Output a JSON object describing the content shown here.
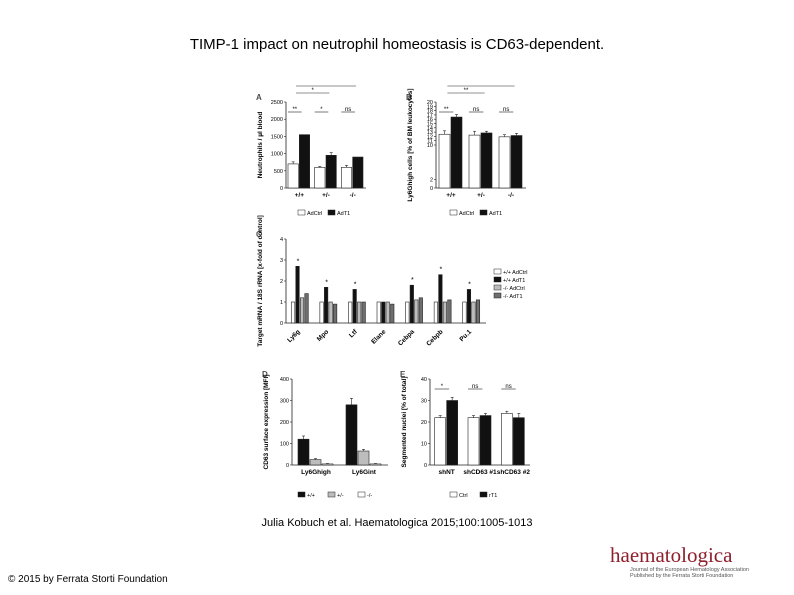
{
  "slide": {
    "title": "TIMP-1 impact on neutrophil homeostasis is CD63-dependent.",
    "citation": "Julia Kobuch et al. Haematologica 2015;100:1005-1013",
    "copyright": "© 2015 by Ferrata Storti Foundation",
    "logo_text": "haematologica",
    "logo_sub1": "Journal of the European Hematology Association",
    "logo_sub2": "Published by the Ferrata Storti Foundation"
  },
  "colors": {
    "white_bar": "#ffffff",
    "black_bar": "#111111",
    "light_gray_bar": "#bdbdbd",
    "dark_gray_bar": "#6e6e6e",
    "stroke": "#222222"
  },
  "chart_data": [
    {
      "panel": "A",
      "type": "bar",
      "ylabel": "Neutrophils / µl blood",
      "ylim": [
        0,
        2500
      ],
      "yticks": [
        0,
        500,
        1000,
        1500,
        2000,
        2500
      ],
      "categories": [
        "+/+",
        "+/-",
        "-/-"
      ],
      "series": [
        {
          "name": "AdCtrl",
          "values": [
            700,
            600,
            600
          ],
          "errors": [
            60,
            30,
            60
          ],
          "color": "white"
        },
        {
          "name": "AdT1",
          "values": [
            1550,
            950,
            900
          ],
          "errors": [
            0,
            80,
            0
          ],
          "color": "black"
        }
      ],
      "significance": [
        {
          "label": "**",
          "from": 0,
          "to": 0,
          "level": 1
        },
        {
          "label": "*",
          "from": 0,
          "to": 1,
          "level": 2
        },
        {
          "label": "*",
          "from": 0,
          "to": 2,
          "level": 3
        },
        {
          "label": "*",
          "from": 1,
          "to": 1,
          "level": 1
        },
        {
          "label": "ns",
          "from": 2,
          "to": 2,
          "level": 1
        }
      ]
    },
    {
      "panel": "B",
      "type": "bar",
      "ylabel": "Ly6Ghigh cells [% of BM leukocytes]",
      "ylim": [
        0,
        20
      ],
      "yticks": [
        0,
        2,
        10,
        11,
        12,
        13,
        14,
        15,
        16,
        17,
        18,
        19,
        20
      ],
      "broken_axis": true,
      "categories": [
        "+/+",
        "+/-",
        "-/-"
      ],
      "series": [
        {
          "name": "AdCtrl",
          "values": [
            12.5,
            12.3,
            11.9
          ],
          "errors": [
            0.8,
            0.9,
            0.5
          ],
          "color": "white"
        },
        {
          "name": "AdT1",
          "values": [
            16.5,
            12.8,
            12.2
          ],
          "errors": [
            0.6,
            0.4,
            0.5
          ],
          "color": "black"
        }
      ],
      "significance": [
        {
          "label": "**",
          "from": 0,
          "to": 0,
          "level": 1
        },
        {
          "label": "**",
          "from": 0,
          "to": 1,
          "level": 2
        },
        {
          "label": "**",
          "from": 0,
          "to": 2,
          "level": 3
        },
        {
          "label": "ns",
          "from": 1,
          "to": 1,
          "level": 1
        },
        {
          "label": "ns",
          "from": 2,
          "to": 2,
          "level": 1
        }
      ]
    },
    {
      "panel": "C",
      "type": "bar",
      "ylabel": "Target mRNA / 18S rRNA [x-fold of control]",
      "ylim": [
        0,
        4
      ],
      "yticks": [
        0,
        1,
        2,
        3,
        4
      ],
      "categories": [
        "Ly6g",
        "Mpo",
        "Ltf",
        "Elane",
        "Cebpa",
        "Cebpb",
        "Pu.1"
      ],
      "series": [
        {
          "name": "+/+ AdCtrl",
          "values": [
            1.0,
            1.0,
            1.0,
            1.0,
            1.0,
            1.0,
            1.0
          ],
          "color": "white"
        },
        {
          "name": "+/+ AdT1",
          "values": [
            2.7,
            1.7,
            1.6,
            1.0,
            1.8,
            2.3,
            1.6
          ],
          "color": "black"
        },
        {
          "name": "-/- AdCtrl",
          "values": [
            1.2,
            1.0,
            1.0,
            1.0,
            1.1,
            1.0,
            1.0
          ],
          "color": "lightgray"
        },
        {
          "name": "-/- AdT1",
          "values": [
            1.4,
            0.9,
            1.0,
            0.9,
            1.2,
            1.1,
            1.1
          ],
          "color": "darkgray"
        }
      ],
      "significance_labels": [
        "*",
        "*",
        "*",
        "",
        "*",
        "*",
        "*"
      ]
    },
    {
      "panel": "D",
      "type": "bar",
      "ylabel": "CD63 surface expression [MFI]",
      "ylim": [
        0,
        400
      ],
      "yticks": [
        0,
        100,
        200,
        300,
        400
      ],
      "categories": [
        "Ly6Ghigh",
        "Ly6Gint"
      ],
      "series": [
        {
          "name": "+/+",
          "values": [
            120,
            280
          ],
          "errors": [
            15,
            30
          ],
          "color": "black"
        },
        {
          "name": "+/-",
          "values": [
            25,
            65
          ],
          "errors": [
            5,
            8
          ],
          "color": "lightgray"
        },
        {
          "name": "-/-",
          "values": [
            5,
            5
          ],
          "errors": [
            2,
            2
          ],
          "color": "white"
        }
      ]
    },
    {
      "panel": "E",
      "type": "bar",
      "ylabel": "Segmented nuclei [% of total]",
      "ylim": [
        0,
        40
      ],
      "yticks": [
        0,
        10,
        20,
        30,
        40
      ],
      "categories": [
        "shNT",
        "shCD63 #1",
        "shCD63 #2"
      ],
      "series": [
        {
          "name": "Ctrl",
          "values": [
            22,
            22,
            24
          ],
          "errors": [
            1,
            1,
            1
          ],
          "color": "white"
        },
        {
          "name": "rT1",
          "values": [
            30,
            23,
            22
          ],
          "errors": [
            1.5,
            1,
            2
          ],
          "color": "black"
        }
      ],
      "significance": [
        {
          "label": "*",
          "from": 0,
          "to": 0,
          "level": 1
        },
        {
          "label": "ns",
          "from": 1,
          "to": 1,
          "level": 1
        },
        {
          "label": "ns",
          "from": 2,
          "to": 2,
          "level": 1
        }
      ]
    }
  ]
}
